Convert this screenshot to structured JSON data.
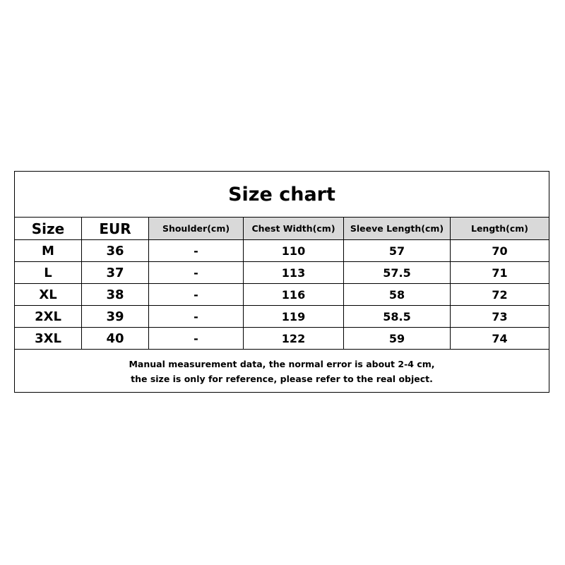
{
  "title": "Size chart",
  "header": [
    "Size",
    "EUR",
    "Shoulder(cm)",
    "Chest Width(cm)",
    "Sleeve Length(cm)",
    "Length(cm)"
  ],
  "rows": [
    [
      "M",
      "36",
      "-",
      "110",
      "57",
      "70"
    ],
    [
      "L",
      "37",
      "-",
      "113",
      "57.5",
      "71"
    ],
    [
      "XL",
      "38",
      "-",
      "116",
      "58",
      "72"
    ],
    [
      "2XL",
      "39",
      "-",
      "119",
      "58.5",
      "73"
    ],
    [
      "3XL",
      "40",
      "-",
      "122",
      "59",
      "74"
    ]
  ],
  "note": [
    "Manual measurement data, the normal error is about 2-4 cm,",
    "the size is only for reference, please refer to the real object."
  ],
  "colors": {
    "header_shade": "#d9d9d9",
    "border": "#000000"
  }
}
